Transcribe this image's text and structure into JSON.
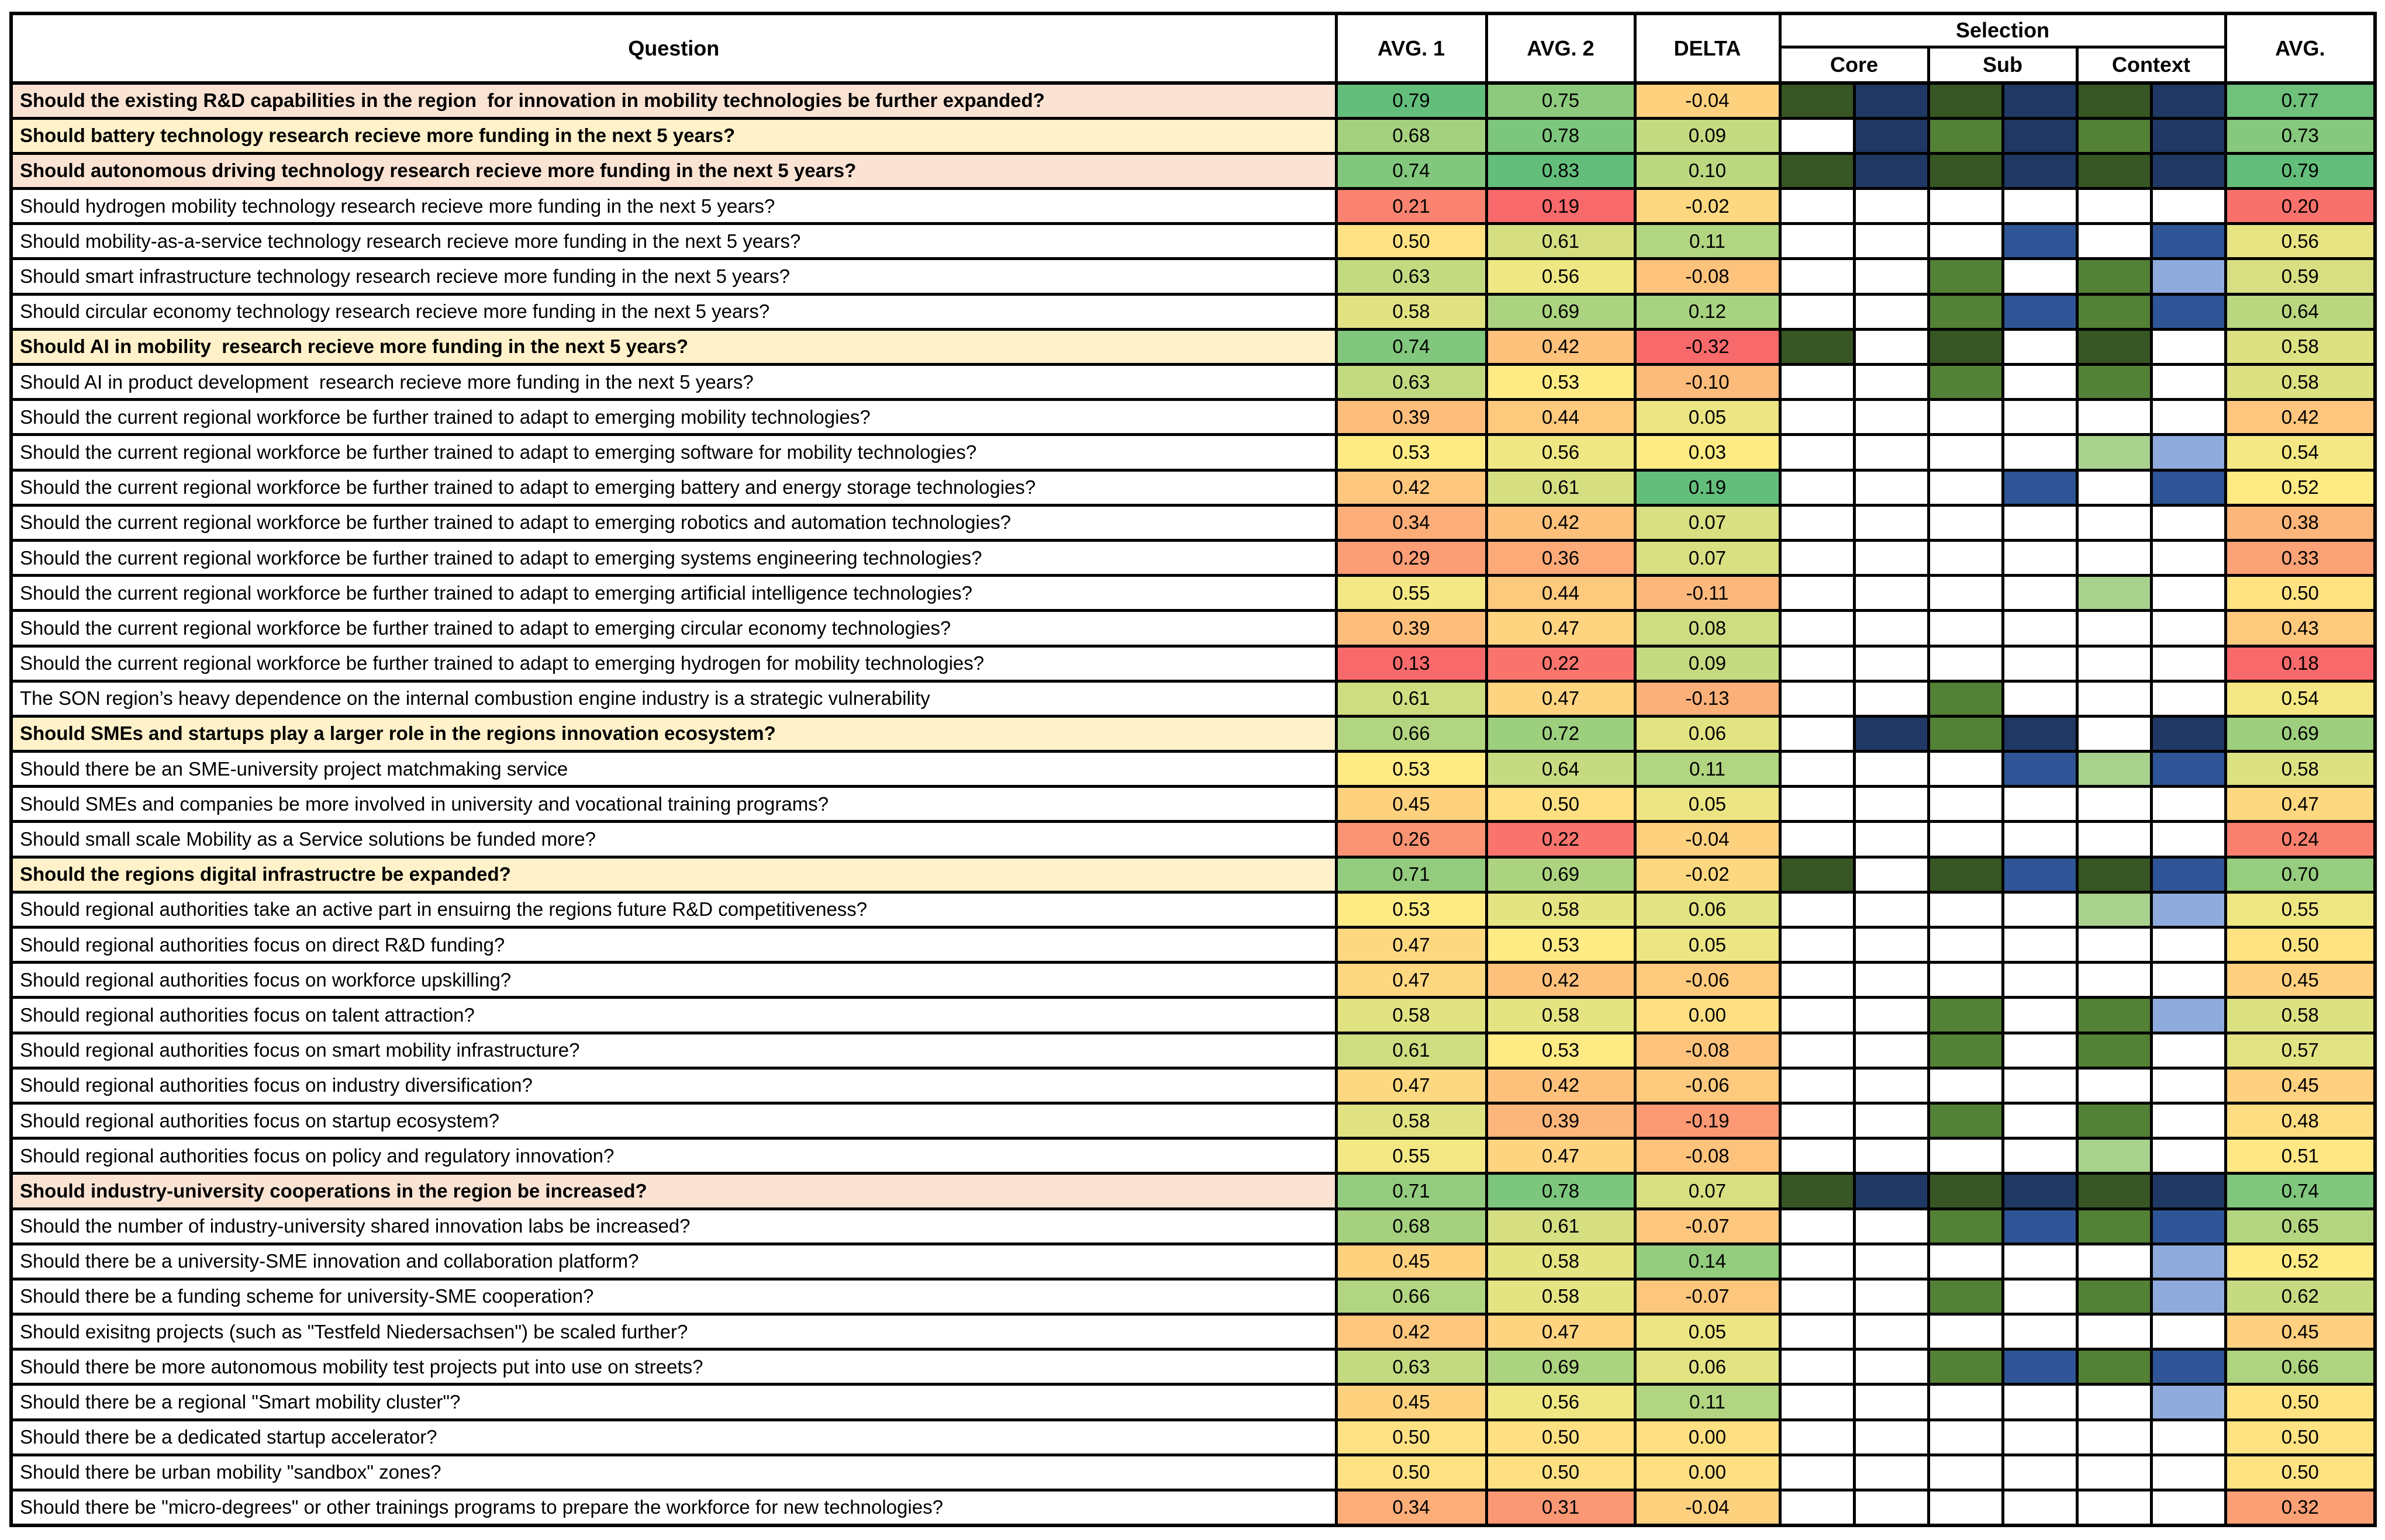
{
  "table": {
    "header": {
      "question": "Question",
      "avg1": "AVG. 1",
      "avg2": "AVG. 2",
      "delta": "DELTA",
      "selection": "Selection",
      "core": "Core",
      "sub": "Sub",
      "context": "Context",
      "avg": "AVG."
    },
    "highlight_colors": {
      "salmon": "#FBE3D4",
      "cream": "#FFF1C9"
    },
    "selection_palette": {
      "W": "#FFFFFF",
      "DG": "#375623",
      "MG": "#538135",
      "LG": "#A9D18E",
      "NV": "#1F3864",
      "MB": "#2F5597",
      "LB": "#8FAADC"
    },
    "heatmap": {
      "colors": {
        "low": "#F8696B",
        "mid": "#FFEB84",
        "high": "#63BE7B"
      },
      "scales": {
        "a1": {
          "min": 0.13,
          "mid": 0.53,
          "max": 0.79
        },
        "a2": {
          "min": 0.19,
          "mid": 0.53,
          "max": 0.83
        },
        "d": {
          "min": -0.32,
          "mid": 0.03,
          "max": 0.19
        },
        "avg": {
          "min": 0.18,
          "mid": 0.52,
          "max": 0.79
        }
      }
    },
    "rows": [
      {
        "q": "Should the existing R&D capabilities in the region  for innovation in mobility technologies be further expanded?",
        "bold": true,
        "hl": "salmon",
        "a1": "0.79",
        "a2": "0.75",
        "d": "-0.04",
        "sel": [
          "DG",
          "NV",
          "DG",
          "NV",
          "DG",
          "NV"
        ],
        "avg": "0.77"
      },
      {
        "q": "Should battery technology research recieve more funding in the next 5 years?",
        "bold": true,
        "hl": "cream",
        "a1": "0.68",
        "a2": "0.78",
        "d": "0.09",
        "sel": [
          "W",
          "NV",
          "MG",
          "NV",
          "MG",
          "NV"
        ],
        "avg": "0.73"
      },
      {
        "q": "Should autonomous driving technology research recieve more funding in the next 5 years?",
        "bold": true,
        "hl": "salmon",
        "a1": "0.74",
        "a2": "0.83",
        "d": "0.10",
        "sel": [
          "DG",
          "NV",
          "DG",
          "NV",
          "DG",
          "NV"
        ],
        "avg": "0.79"
      },
      {
        "q": "Should hydrogen mobility technology research recieve more funding in the next 5 years?",
        "a1": "0.21",
        "a2": "0.19",
        "d": "-0.02",
        "sel": [
          "W",
          "W",
          "W",
          "W",
          "W",
          "W"
        ],
        "avg": "0.20"
      },
      {
        "q": "Should mobility-as-a-service technology research recieve more funding in the next 5 years?",
        "a1": "0.50",
        "a2": "0.61",
        "d": "0.11",
        "sel": [
          "W",
          "W",
          "W",
          "MB",
          "W",
          "MB"
        ],
        "avg": "0.56"
      },
      {
        "q": "Should smart infrastructure technology research recieve more funding in the next 5 years?",
        "a1": "0.63",
        "a2": "0.56",
        "d": "-0.08",
        "sel": [
          "W",
          "W",
          "MG",
          "W",
          "MG",
          "LB"
        ],
        "avg": "0.59"
      },
      {
        "q": "Should circular economy technology research recieve more funding in the next 5 years?",
        "a1": "0.58",
        "a2": "0.69",
        "d": "0.12",
        "sel": [
          "W",
          "W",
          "MG",
          "MB",
          "MG",
          "MB"
        ],
        "avg": "0.64"
      },
      {
        "q": "Should AI in mobility  research recieve more funding in the next 5 years?",
        "bold": true,
        "hl": "cream",
        "a1": "0.74",
        "a2": "0.42",
        "d": "-0.32",
        "sel": [
          "DG",
          "W",
          "DG",
          "W",
          "DG",
          "W"
        ],
        "avg": "0.58"
      },
      {
        "q": "Should AI in product development  research recieve more funding in the next 5 years?",
        "a1": "0.63",
        "a2": "0.53",
        "d": "-0.10",
        "sel": [
          "W",
          "W",
          "MG",
          "W",
          "MG",
          "W"
        ],
        "avg": "0.58"
      },
      {
        "q": "Should the current regional workforce be further trained to adapt to emerging mobility technologies?",
        "a1": "0.39",
        "a2": "0.44",
        "d": "0.05",
        "sel": [
          "W",
          "W",
          "W",
          "W",
          "W",
          "W"
        ],
        "avg": "0.42"
      },
      {
        "q": "Should the current regional workforce be further trained to adapt to emerging software for mobility technologies?",
        "a1": "0.53",
        "a2": "0.56",
        "d": "0.03",
        "sel": [
          "W",
          "W",
          "W",
          "W",
          "LG",
          "LB"
        ],
        "avg": "0.54"
      },
      {
        "q": "Should the current regional workforce be further trained to adapt to emerging battery and energy storage technologies?",
        "a1": "0.42",
        "a2": "0.61",
        "d": "0.19",
        "sel": [
          "W",
          "W",
          "W",
          "MB",
          "W",
          "MB"
        ],
        "avg": "0.52"
      },
      {
        "q": "Should the current regional workforce be further trained to adapt to emerging robotics and automation technologies?",
        "a1": "0.34",
        "a2": "0.42",
        "d": "0.07",
        "sel": [
          "W",
          "W",
          "W",
          "W",
          "W",
          "W"
        ],
        "avg": "0.38"
      },
      {
        "q": "Should the current regional workforce be further trained to adapt to emerging systems engineering technologies?",
        "a1": "0.29",
        "a2": "0.36",
        "d": "0.07",
        "sel": [
          "W",
          "W",
          "W",
          "W",
          "W",
          "W"
        ],
        "avg": "0.33"
      },
      {
        "q": "Should the current regional workforce be further trained to adapt to emerging artificial intelligence technologies?",
        "a1": "0.55",
        "a2": "0.44",
        "d": "-0.11",
        "sel": [
          "W",
          "W",
          "W",
          "W",
          "LG",
          "W"
        ],
        "avg": "0.50"
      },
      {
        "q": "Should the current regional workforce be further trained to adapt to emerging circular economy technologies?",
        "a1": "0.39",
        "a2": "0.47",
        "d": "0.08",
        "sel": [
          "W",
          "W",
          "W",
          "W",
          "W",
          "W"
        ],
        "avg": "0.43"
      },
      {
        "q": "Should the current regional workforce be further trained to adapt to emerging hydrogen for mobility technologies?",
        "a1": "0.13",
        "a2": "0.22",
        "d": "0.09",
        "sel": [
          "W",
          "W",
          "W",
          "W",
          "W",
          "W"
        ],
        "avg": "0.18"
      },
      {
        "q": "The SON region’s heavy dependence on the internal combustion engine industry is a strategic vulnerability",
        "a1": "0.61",
        "a2": "0.47",
        "d": "-0.13",
        "sel": [
          "W",
          "W",
          "MG",
          "W",
          "W",
          "W"
        ],
        "avg": "0.54"
      },
      {
        "q": "Should SMEs and startups play a larger role in the regions innovation ecosystem?",
        "bold": true,
        "hl": "cream",
        "a1": "0.66",
        "a2": "0.72",
        "d": "0.06",
        "sel": [
          "W",
          "NV",
          "MG",
          "NV",
          "W",
          "NV"
        ],
        "avg": "0.69"
      },
      {
        "q": "Should there be an SME-university project matchmaking service",
        "a1": "0.53",
        "a2": "0.64",
        "d": "0.11",
        "sel": [
          "W",
          "W",
          "W",
          "MB",
          "LG",
          "MB"
        ],
        "avg": "0.58"
      },
      {
        "q": "Should SMEs and companies be more involved in university and vocational training programs?",
        "a1": "0.45",
        "a2": "0.50",
        "d": "0.05",
        "sel": [
          "W",
          "W",
          "W",
          "W",
          "W",
          "W"
        ],
        "avg": "0.47"
      },
      {
        "q": "Should small scale Mobility as a Service solutions be funded more?",
        "a1": "0.26",
        "a2": "0.22",
        "d": "-0.04",
        "sel": [
          "W",
          "W",
          "W",
          "W",
          "W",
          "W"
        ],
        "avg": "0.24"
      },
      {
        "q": "Should the regions digital infrastructre be expanded?",
        "bold": true,
        "hl": "cream",
        "a1": "0.71",
        "a2": "0.69",
        "d": "-0.02",
        "sel": [
          "DG",
          "W",
          "DG",
          "MB",
          "DG",
          "MB"
        ],
        "avg": "0.70"
      },
      {
        "q": "Should regional authorities take an active part in ensuirng the regions future R&D competitiveness?",
        "a1": "0.53",
        "a2": "0.58",
        "d": "0.06",
        "sel": [
          "W",
          "W",
          "W",
          "W",
          "LG",
          "LB"
        ],
        "avg": "0.55"
      },
      {
        "q": "Should regional authorities focus on direct R&D funding?",
        "a1": "0.47",
        "a2": "0.53",
        "d": "0.05",
        "sel": [
          "W",
          "W",
          "W",
          "W",
          "W",
          "W"
        ],
        "avg": "0.50"
      },
      {
        "q": "Should regional authorities focus on workforce upskilling?",
        "a1": "0.47",
        "a2": "0.42",
        "d": "-0.06",
        "sel": [
          "W",
          "W",
          "W",
          "W",
          "W",
          "W"
        ],
        "avg": "0.45"
      },
      {
        "q": "Should regional authorities focus on talent attraction?",
        "a1": "0.58",
        "a2": "0.58",
        "d": "0.00",
        "sel": [
          "W",
          "W",
          "MG",
          "W",
          "MG",
          "LB"
        ],
        "avg": "0.58"
      },
      {
        "q": "Should regional authorities focus on smart mobility infrastructure?",
        "a1": "0.61",
        "a2": "0.53",
        "d": "-0.08",
        "sel": [
          "W",
          "W",
          "MG",
          "W",
          "MG",
          "W"
        ],
        "avg": "0.57"
      },
      {
        "q": "Should regional authorities focus on industry diversification?",
        "a1": "0.47",
        "a2": "0.42",
        "d": "-0.06",
        "sel": [
          "W",
          "W",
          "W",
          "W",
          "W",
          "W"
        ],
        "avg": "0.45"
      },
      {
        "q": "Should regional authorities focus on startup ecosystem?",
        "a1": "0.58",
        "a2": "0.39",
        "d": "-0.19",
        "sel": [
          "W",
          "W",
          "MG",
          "W",
          "MG",
          "W"
        ],
        "avg": "0.48"
      },
      {
        "q": "Should regional authorities focus on policy and regulatory innovation?",
        "a1": "0.55",
        "a2": "0.47",
        "d": "-0.08",
        "sel": [
          "W",
          "W",
          "W",
          "W",
          "LG",
          "W"
        ],
        "avg": "0.51"
      },
      {
        "q": "Should industry-university cooperations in the region be increased?",
        "bold": true,
        "hl": "salmon",
        "a1": "0.71",
        "a2": "0.78",
        "d": "0.07",
        "sel": [
          "DG",
          "NV",
          "DG",
          "NV",
          "DG",
          "NV"
        ],
        "avg": "0.74"
      },
      {
        "q": "Should the number of industry-university shared innovation labs be increased?",
        "a1": "0.68",
        "a2": "0.61",
        "d": "-0.07",
        "sel": [
          "W",
          "W",
          "MG",
          "MB",
          "MG",
          "MB"
        ],
        "avg": "0.65"
      },
      {
        "q": "Should there be a university-SME innovation and collaboration platform?",
        "a1": "0.45",
        "a2": "0.58",
        "d": "0.14",
        "sel": [
          "W",
          "W",
          "W",
          "W",
          "W",
          "LB"
        ],
        "avg": "0.52"
      },
      {
        "q": "Should there be a funding scheme for university-SME cooperation?",
        "a1": "0.66",
        "a2": "0.58",
        "d": "-0.07",
        "sel": [
          "W",
          "W",
          "MG",
          "W",
          "MG",
          "LB"
        ],
        "avg": "0.62"
      },
      {
        "q": "Should exisitng projects (such as \"Testfeld Niedersachsen\") be scaled further?",
        "a1": "0.42",
        "a2": "0.47",
        "d": "0.05",
        "sel": [
          "W",
          "W",
          "W",
          "W",
          "W",
          "W"
        ],
        "avg": "0.45"
      },
      {
        "q": "Should there be more autonomous mobility test projects put into use on streets?",
        "a1": "0.63",
        "a2": "0.69",
        "d": "0.06",
        "sel": [
          "W",
          "W",
          "MG",
          "MB",
          "MG",
          "MB"
        ],
        "avg": "0.66"
      },
      {
        "q": "Should there be a regional \"Smart mobility cluster\"?",
        "a1": "0.45",
        "a2": "0.56",
        "d": "0.11",
        "sel": [
          "W",
          "W",
          "W",
          "W",
          "W",
          "LB"
        ],
        "avg": "0.50"
      },
      {
        "q": "Should there be a dedicated startup accelerator?",
        "a1": "0.50",
        "a2": "0.50",
        "d": "0.00",
        "sel": [
          "W",
          "W",
          "W",
          "W",
          "W",
          "W"
        ],
        "avg": "0.50"
      },
      {
        "q": "Should there be urban mobility \"sandbox\" zones?",
        "a1": "0.50",
        "a2": "0.50",
        "d": "0.00",
        "sel": [
          "W",
          "W",
          "W",
          "W",
          "W",
          "W"
        ],
        "avg": "0.50"
      },
      {
        "q": "Should there be \"micro-degrees\" or other trainings programs to prepare the workforce for new technologies?",
        "a1": "0.34",
        "a2": "0.31",
        "d": "-0.04",
        "sel": [
          "W",
          "W",
          "W",
          "W",
          "W",
          "W"
        ],
        "avg": "0.32"
      }
    ]
  }
}
